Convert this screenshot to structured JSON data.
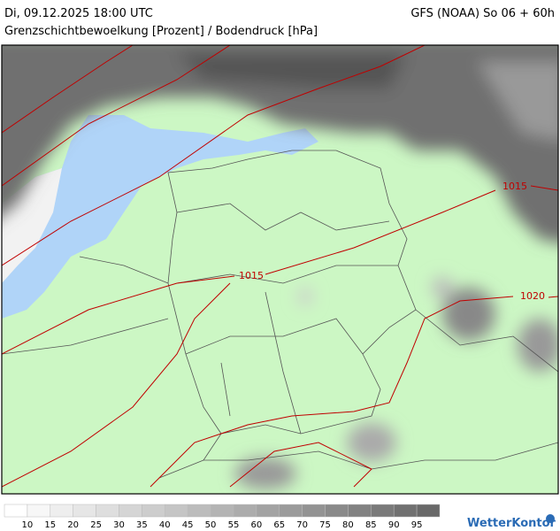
{
  "header": {
    "valid_time": "Di, 09.12.2025 18:00 UTC",
    "model_run": "GFS (NOAA) So 06 + 60h",
    "subtitle": "Grenzschichtbewoelkung [Prozent] / Bodendruck [hPa]"
  },
  "isobars": [
    {
      "label": "1015"
    },
    {
      "label": "1015"
    },
    {
      "label": "1020"
    }
  ],
  "legend": {
    "labels": [
      10,
      15,
      20,
      25,
      30,
      35,
      40,
      45,
      50,
      55,
      60,
      65,
      70,
      75,
      80,
      85,
      90,
      95
    ]
  },
  "brand": "WetterKontor"
}
